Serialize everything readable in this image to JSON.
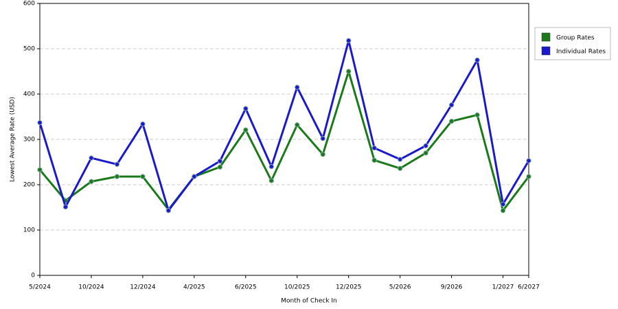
{
  "chart_data": {
    "type": "line",
    "x_label": "Month of Check In",
    "y_label": "Lowest Average Rate (USD)",
    "categories": [
      "5/2024",
      null,
      "10/2024",
      null,
      "12/2024",
      null,
      "4/2025",
      null,
      "6/2025",
      null,
      "10/2025",
      null,
      "12/2025",
      null,
      "5/2026",
      null,
      "9/2026",
      null,
      "1/2027",
      "6/2027"
    ],
    "series": [
      {
        "name": "Group Rates",
        "color": "#1a7a1a",
        "values": [
          233,
          165,
          207,
          218,
          218,
          145,
          218,
          239,
          321,
          209,
          332,
          267,
          450,
          254,
          236,
          270,
          340,
          354,
          143,
          218
        ]
      },
      {
        "name": "Individual Rates",
        "color": "#1a1acc",
        "values": [
          337,
          151,
          259,
          245,
          334,
          143,
          218,
          252,
          368,
          240,
          415,
          302,
          518,
          281,
          256,
          286,
          376,
          475,
          157,
          253
        ]
      }
    ],
    "ylim": [
      0,
      600
    ],
    "yticks": [
      0,
      100,
      200,
      300,
      400,
      500,
      600
    ],
    "grid": true,
    "legend": "right"
  }
}
